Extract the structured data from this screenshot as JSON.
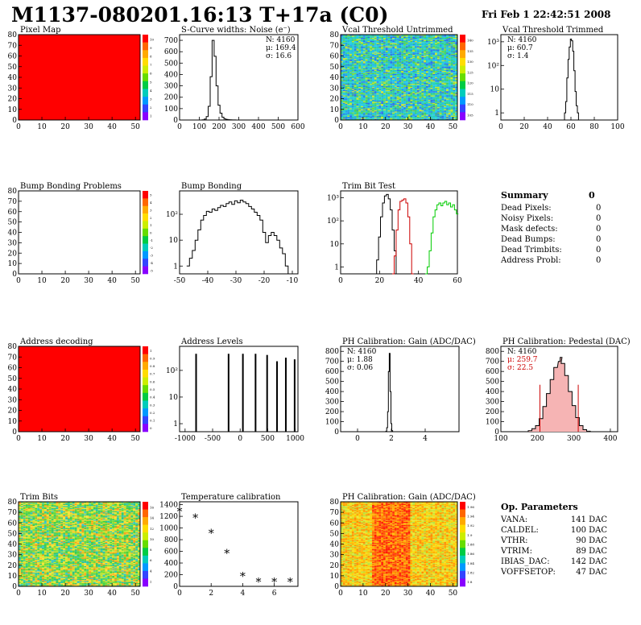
{
  "header": {
    "title": "M1137-080201.16:13 T+17a (C0)",
    "timestamp": "Fri Feb  1 22:42:51 2008"
  },
  "summary": {
    "title": "Summary",
    "total": "0",
    "rows": [
      {
        "label": "Dead Pixels:",
        "value": "0"
      },
      {
        "label": "Noisy Pixels:",
        "value": "0"
      },
      {
        "label": "Mask defects:",
        "value": "0"
      },
      {
        "label": "Dead Bumps:",
        "value": "0"
      },
      {
        "label": "Dead Trimbits:",
        "value": "0"
      },
      {
        "label": "Address Probl:",
        "value": "0"
      }
    ]
  },
  "op_params": {
    "title": "Op. Parameters",
    "rows": [
      {
        "label": "VANA:",
        "value": "141 DAC"
      },
      {
        "label": "CALDEL:",
        "value": "100 DAC"
      },
      {
        "label": "VTHR:",
        "value": "90 DAC"
      },
      {
        "label": "VTRIM:",
        "value": "89 DAC"
      },
      {
        "label": "IBIAS_DAC:",
        "value": "142 DAC"
      },
      {
        "label": "VOFFSETOP:",
        "value": "47 DAC"
      }
    ]
  },
  "colors": {
    "histogram": "#000000",
    "trim_series_2": "#cc0000",
    "trim_series_3": "#00cc00",
    "map_red": "#ff0000",
    "stats_red": "#cc0000"
  },
  "chart_data": [
    {
      "id": "pixel-map",
      "type": "heatmap",
      "title": "Pixel Map",
      "xlim": [
        0,
        52
      ],
      "ylim": [
        0,
        80
      ],
      "xticks": [
        "0",
        "10",
        "20",
        "30",
        "40",
        "50"
      ],
      "yticks": [
        "0",
        "10",
        "20",
        "30",
        "40",
        "50",
        "60",
        "70",
        "80"
      ],
      "fill": "uniform-red",
      "palette": "rainbow",
      "zticks": [
        "10",
        "9",
        "8",
        "7",
        "6",
        "5",
        "4",
        "3",
        "2",
        "1"
      ]
    },
    {
      "id": "scurve-noise",
      "type": "line",
      "title": "S-Curve widths: Noise (e⁻)",
      "xlim": [
        0,
        600
      ],
      "ylim": [
        0,
        750
      ],
      "xticks": [
        "0",
        "100",
        "200",
        "300",
        "400",
        "500",
        "600"
      ],
      "yticks": [
        "0",
        "100",
        "200",
        "300",
        "400",
        "500",
        "600",
        "700"
      ],
      "stats": [
        "N: 4160",
        "μ: 169.4",
        "σ: 16.6"
      ],
      "x": [
        110,
        120,
        130,
        140,
        150,
        160,
        170,
        180,
        190,
        200,
        210,
        220,
        230,
        240,
        250,
        260,
        270,
        280,
        290,
        300
      ],
      "y": [
        0,
        2,
        8,
        30,
        120,
        380,
        700,
        560,
        300,
        130,
        60,
        25,
        10,
        6,
        3,
        2,
        1,
        1,
        0,
        0
      ]
    },
    {
      "id": "vcal-untrimmed",
      "type": "heatmap",
      "title": "Vcal Threshold Untrimmed",
      "xlim": [
        0,
        52
      ],
      "ylim": [
        0,
        80
      ],
      "xticks": [
        "0",
        "10",
        "20",
        "30",
        "40",
        "50"
      ],
      "yticks": [
        "0",
        "10",
        "20",
        "30",
        "40",
        "50",
        "60",
        "70",
        "80"
      ],
      "fill": "noise-blue-green",
      "palette": "rainbow",
      "zticks": [
        "140",
        "135",
        "130",
        "125",
        "120",
        "115",
        "110",
        "105"
      ]
    },
    {
      "id": "vcal-trimmed",
      "type": "line",
      "title": "Vcal Threshold Trimmed",
      "log_y": true,
      "xlim": [
        0,
        100
      ],
      "ylim": [
        0.5,
        2000
      ],
      "xticks": [
        "0",
        "20",
        "40",
        "60",
        "80",
        "100"
      ],
      "yticks": [
        "1",
        "10",
        "10²",
        "10³"
      ],
      "stats": [
        "N: 4160",
        "μ: 60.7",
        "σ:  1.4"
      ],
      "x": [
        54,
        55,
        56,
        57,
        58,
        59,
        60,
        61,
        62,
        63,
        64,
        65,
        66,
        67
      ],
      "y": [
        0.5,
        1,
        3,
        30,
        180,
        600,
        1300,
        1100,
        400,
        60,
        8,
        2,
        1,
        0.5
      ]
    },
    {
      "id": "bump-problems",
      "type": "heatmap",
      "title": "Bump Bonding Problems",
      "xlim": [
        0,
        52
      ],
      "ylim": [
        0,
        80
      ],
      "xticks": [
        "0",
        "10",
        "20",
        "30",
        "40",
        "50"
      ],
      "yticks": [
        "0",
        "10",
        "20",
        "30",
        "40",
        "50",
        "60",
        "70",
        "80"
      ],
      "fill": "empty",
      "palette": "rainbow",
      "zticks": [
        "5",
        "4",
        "3",
        "2",
        "1",
        "0",
        "-1",
        "-2",
        "-3",
        "-4",
        "-5"
      ]
    },
    {
      "id": "bump-bonding",
      "type": "line",
      "title": "Bump Bonding",
      "log_y": true,
      "xlim": [
        -50,
        -8
      ],
      "ylim": [
        0.5,
        800
      ],
      "xticks": [
        "-50",
        "-40",
        "-30",
        "-20",
        "-10"
      ],
      "yticks": [
        "1",
        "10",
        "10²"
      ],
      "x": [
        -47,
        -46,
        -45,
        -44,
        -43,
        -42,
        -41,
        -40,
        -39,
        -38,
        -37,
        -36,
        -35,
        -34,
        -33,
        -32,
        -31,
        -30,
        -29,
        -28,
        -27,
        -26,
        -25,
        -24,
        -23,
        -22,
        -21,
        -20,
        -19,
        -18,
        -17,
        -16,
        -15,
        -14,
        -13,
        -12,
        -11,
        -10
      ],
      "y": [
        1,
        2,
        4,
        10,
        25,
        60,
        90,
        130,
        120,
        160,
        140,
        180,
        220,
        200,
        260,
        300,
        240,
        330,
        280,
        350,
        300,
        260,
        200,
        160,
        120,
        90,
        60,
        20,
        8,
        15,
        20,
        15,
        10,
        5,
        3,
        1,
        0.5,
        0.5
      ]
    },
    {
      "id": "trim-bit-test",
      "type": "line",
      "title": "Trim Bit Test",
      "log_y": true,
      "xlim": [
        0,
        60
      ],
      "ylim": [
        0.5,
        2000
      ],
      "xticks": [
        "0",
        "20",
        "40",
        "60"
      ],
      "yticks": [
        "1",
        "10",
        "10²",
        "10³"
      ],
      "series": [
        {
          "x": [
            18,
            19,
            20,
            21,
            22,
            23,
            24,
            25,
            26,
            27,
            28,
            29
          ],
          "y": [
            0.5,
            2,
            20,
            150,
            600,
            1200,
            1400,
            900,
            300,
            40,
            5,
            0.5
          ]
        },
        {
          "x": [
            27,
            28,
            29,
            30,
            31,
            32,
            33,
            34,
            35,
            36,
            37
          ],
          "y": [
            0.5,
            3,
            40,
            300,
            700,
            800,
            900,
            600,
            150,
            10,
            0.5
          ]
        },
        {
          "x": [
            44,
            45,
            46,
            47,
            48,
            49,
            50,
            51,
            52,
            53,
            54,
            55,
            56,
            57,
            58,
            59,
            60
          ],
          "y": [
            0.5,
            1,
            5,
            30,
            150,
            300,
            500,
            600,
            450,
            600,
            700,
            500,
            600,
            400,
            500,
            300,
            200
          ]
        }
      ]
    },
    {
      "id": "address-decoding",
      "type": "heatmap",
      "title": "Address decoding",
      "xlim": [
        0,
        52
      ],
      "ylim": [
        0,
        80
      ],
      "xticks": [
        "0",
        "10",
        "20",
        "30",
        "40",
        "50"
      ],
      "yticks": [
        "0",
        "10",
        "20",
        "30",
        "40",
        "50",
        "60",
        "70",
        "80"
      ],
      "fill": "uniform-red",
      "palette": "rainbow",
      "zticks": [
        "1",
        "0.9",
        "0.8",
        "0.7",
        "0.6",
        "0.5",
        "0.4",
        "0.3",
        "0.2",
        "0.1",
        "0"
      ]
    },
    {
      "id": "address-levels",
      "type": "bar",
      "title": "Address Levels",
      "log_y": true,
      "xlim": [
        -1100,
        1050
      ],
      "ylim": [
        0.5,
        800
      ],
      "xticks": [
        "-1000",
        "-500",
        "0",
        "500",
        "1000"
      ],
      "yticks": [
        "1",
        "10",
        "10²"
      ],
      "x": [
        -800,
        -210,
        50,
        280,
        490,
        670,
        830,
        990
      ],
      "y": [
        420,
        420,
        420,
        420,
        380,
        220,
        300,
        260
      ]
    },
    {
      "id": "ph-gain",
      "type": "line",
      "title": "PH Calibration: Gain (ADC/DAC)",
      "xlim": [
        -1,
        6
      ],
      "ylim": [
        0,
        850
      ],
      "xticks": [
        "0",
        "2",
        "4"
      ],
      "yticks": [
        "0",
        "100",
        "200",
        "300",
        "400",
        "500",
        "600",
        "700",
        "800"
      ],
      "stats": [
        "N: 4160",
        "μ: 1.88",
        "σ: 0.06"
      ],
      "x": [
        1.65,
        1.7,
        1.75,
        1.8,
        1.85,
        1.9,
        1.95,
        2.0,
        2.05,
        2.1
      ],
      "y": [
        0,
        5,
        40,
        200,
        600,
        780,
        400,
        80,
        10,
        0
      ]
    },
    {
      "id": "ph-pedestal",
      "type": "line",
      "title": "PH Calibration: Pedestal (DAC)",
      "xlim": [
        100,
        420
      ],
      "ylim": [
        0,
        850
      ],
      "xticks": [
        "100",
        "200",
        "300",
        "400"
      ],
      "yticks": [
        "0",
        "100",
        "200",
        "300",
        "400",
        "500",
        "600",
        "700",
        "800"
      ],
      "stats": [
        "N: 4160",
        "μ: 259.7",
        "σ: 22.5"
      ],
      "cut_lines": [
        207,
        312
      ],
      "x": [
        170,
        180,
        190,
        200,
        210,
        220,
        230,
        240,
        250,
        260,
        265,
        270,
        280,
        290,
        300,
        310,
        320,
        330,
        340,
        350
      ],
      "y": [
        0,
        10,
        30,
        60,
        130,
        250,
        380,
        520,
        640,
        700,
        740,
        680,
        560,
        400,
        260,
        140,
        60,
        20,
        5,
        0
      ]
    },
    {
      "id": "trim-bits",
      "type": "heatmap",
      "title": "Trim Bits",
      "xlim": [
        0,
        52
      ],
      "ylim": [
        0,
        80
      ],
      "xticks": [
        "0",
        "10",
        "20",
        "30",
        "40",
        "50"
      ],
      "yticks": [
        "0",
        "10",
        "20",
        "30",
        "40",
        "50",
        "60",
        "70",
        "80"
      ],
      "fill": "noise-green-yellow",
      "palette": "rainbow",
      "zticks": [
        "16",
        "14",
        "12",
        "10",
        "8",
        "6",
        "4",
        "2"
      ]
    },
    {
      "id": "temp-calib",
      "type": "scatter",
      "title": "Temperature calibration",
      "xlim": [
        0,
        7.5
      ],
      "ylim": [
        0,
        1450
      ],
      "xticks": [
        "0",
        "2",
        "4",
        "6"
      ],
      "yticks": [
        "0",
        "200",
        "400",
        "600",
        "800",
        "1000",
        "1200",
        "1400"
      ],
      "x": [
        0,
        1,
        2,
        3,
        4,
        5,
        6,
        7
      ],
      "y": [
        1270,
        1160,
        900,
        550,
        160,
        60,
        60,
        60
      ]
    },
    {
      "id": "ph-gain-map",
      "type": "heatmap",
      "title": "PH Calibration: Gain (ADC/DAC)",
      "xlim": [
        0,
        52
      ],
      "ylim": [
        0,
        80
      ],
      "xticks": [
        "0",
        "10",
        "20",
        "30",
        "40",
        "50"
      ],
      "yticks": [
        "0",
        "10",
        "20",
        "30",
        "40",
        "50",
        "60",
        "70",
        "80"
      ],
      "fill": "noise-red-yellow",
      "palette": "rainbow",
      "zticks": [
        "1.96",
        "1.94",
        "1.92",
        "1.9",
        "1.88",
        "1.86",
        "1.84",
        "1.82",
        "1.8"
      ]
    }
  ]
}
